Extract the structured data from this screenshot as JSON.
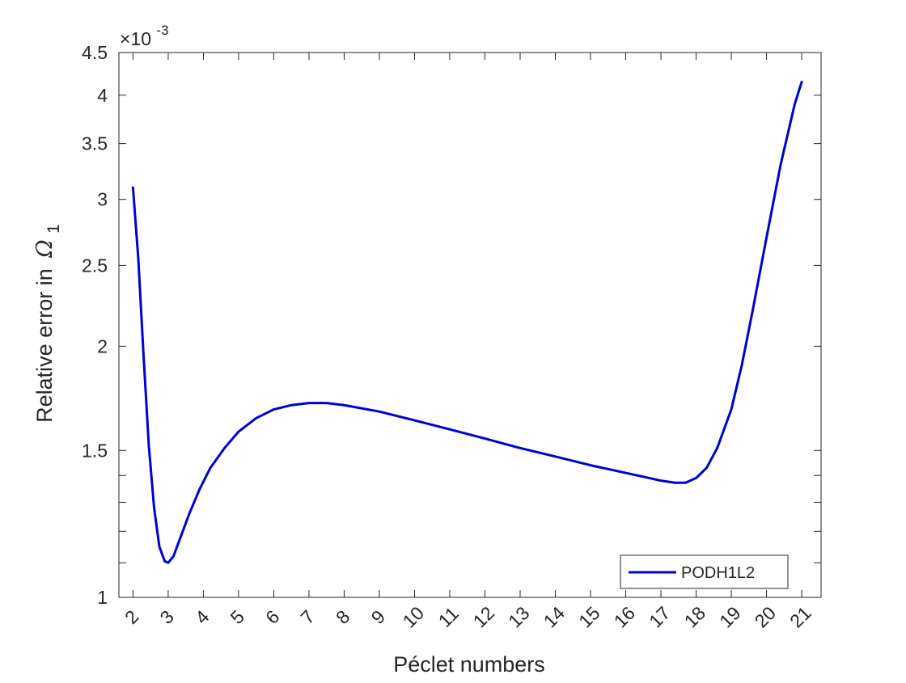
{
  "chart_data": {
    "type": "line",
    "xlabel": "Péclet numbers",
    "ylabel": "Relative error in",
    "ylabel_symbol": "Ω",
    "ylabel_subscript": "1",
    "exponent_base": "×10",
    "exponent_power": "-3",
    "y_scale": "log",
    "xlim": [
      1.6,
      21.55
    ],
    "ylim": [
      1.0,
      4.5
    ],
    "x_ticks": [
      "2",
      "3",
      "4",
      "5",
      "6",
      "7",
      "8",
      "9",
      "10",
      "11",
      "12",
      "13",
      "14",
      "15",
      "16",
      "17",
      "18",
      "19",
      "20",
      "21"
    ],
    "y_ticks_labeled": [
      "1",
      "1.5",
      "2",
      "2.5",
      "3",
      "3.5",
      "4",
      "4.5"
    ],
    "y_ticks_minor": [
      1.1,
      1.2,
      1.3,
      1.4
    ],
    "grid": false,
    "legend_position": "bottom-right",
    "series": [
      {
        "name": "PODH1L2",
        "color": "#0000d6",
        "x": [
          2.0,
          2.15,
          2.3,
          2.45,
          2.6,
          2.75,
          2.9,
          3.0,
          3.15,
          3.35,
          3.6,
          3.9,
          4.2,
          4.6,
          5.0,
          5.5,
          6.0,
          6.5,
          7.0,
          7.5,
          8.0,
          9.0,
          10.0,
          11.0,
          12.0,
          13.0,
          14.0,
          15.0,
          16.0,
          16.5,
          17.0,
          17.4,
          17.7,
          18.0,
          18.3,
          18.6,
          19.0,
          19.3,
          19.6,
          20.0,
          20.4,
          20.8,
          21.0
        ],
        "values": [
          3.1,
          2.55,
          1.95,
          1.52,
          1.28,
          1.15,
          1.105,
          1.1,
          1.12,
          1.18,
          1.26,
          1.35,
          1.43,
          1.51,
          1.58,
          1.64,
          1.68,
          1.7,
          1.71,
          1.71,
          1.7,
          1.67,
          1.63,
          1.59,
          1.55,
          1.51,
          1.475,
          1.44,
          1.41,
          1.395,
          1.38,
          1.372,
          1.372,
          1.39,
          1.43,
          1.51,
          1.68,
          1.9,
          2.2,
          2.7,
          3.3,
          3.9,
          4.15
        ]
      }
    ]
  }
}
